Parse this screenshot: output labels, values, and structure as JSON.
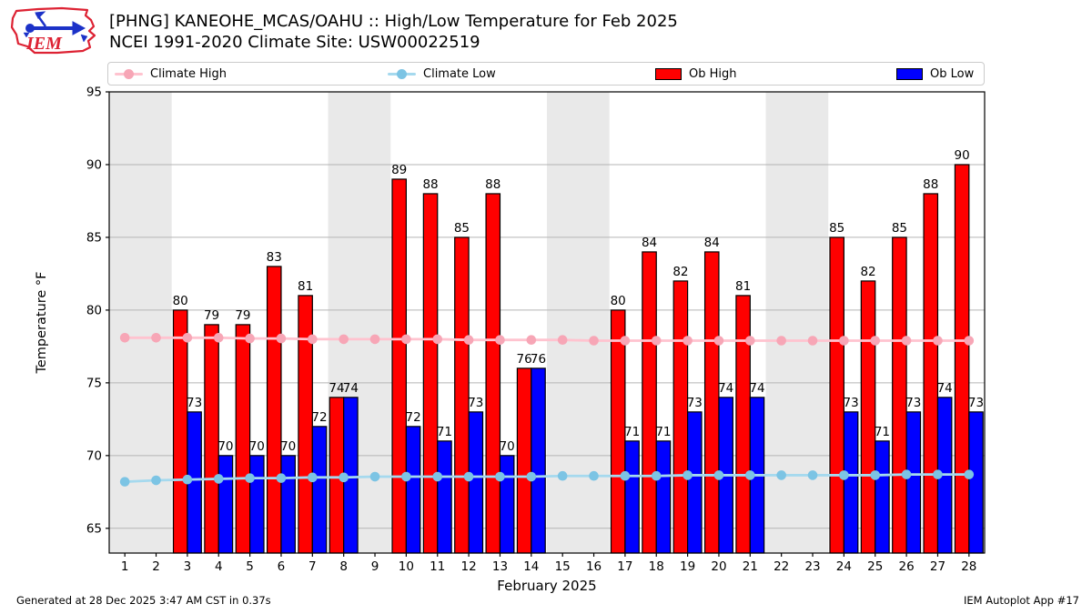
{
  "logo": {
    "text": "IEM"
  },
  "header": {
    "title_line1": "[PHNG] KANEOHE_MCAS/OAHU :: High/Low Temperature for Feb 2025",
    "title_line2": "NCEI 1991-2020 Climate Site: USW00022519"
  },
  "legend": {
    "items": [
      {
        "label": "Climate High",
        "type": "line",
        "line_color": "#ffc3cf",
        "marker_color": "#f7a6b6"
      },
      {
        "label": "Climate Low",
        "type": "line",
        "line_color": "#a5d9ee",
        "marker_color": "#7cc4e4"
      },
      {
        "label": "Ob High",
        "type": "patch",
        "color": "#ff0000"
      },
      {
        "label": "Ob Low",
        "type": "patch",
        "color": "#0000ff"
      }
    ]
  },
  "chart_data": {
    "type": "bar",
    "title": "[PHNG] KANEOHE_MCAS/OAHU :: High/Low Temperature for Feb 2025",
    "subtitle": "NCEI 1991-2020 Climate Site: USW00022519",
    "xlabel": "February 2025",
    "ylabel": "Temperature °F",
    "xlim": [
      0.5,
      28.5
    ],
    "ylim": [
      63.3,
      95
    ],
    "yticks": [
      65,
      70,
      75,
      80,
      85,
      90,
      95
    ],
    "grid": "horizontal",
    "legend_position": "top",
    "band_color": "#e9e9e9",
    "bands": [
      [
        0.5,
        2.5
      ],
      [
        7.5,
        9.5
      ],
      [
        14.5,
        16.5
      ],
      [
        21.5,
        23.5
      ]
    ],
    "x": [
      1,
      2,
      3,
      4,
      5,
      6,
      7,
      8,
      9,
      10,
      11,
      12,
      13,
      14,
      15,
      16,
      17,
      18,
      19,
      20,
      21,
      22,
      23,
      24,
      25,
      26,
      27,
      28
    ],
    "series": [
      {
        "name": "Climate High",
        "type": "line",
        "line_color": "#ffc3cf",
        "marker_color": "#f7a6b6",
        "values": [
          78.1,
          78.1,
          78.1,
          78.1,
          78.05,
          78.05,
          78.0,
          78.0,
          78.0,
          78.0,
          78.0,
          77.95,
          77.95,
          77.95,
          77.95,
          77.9,
          77.9,
          77.9,
          77.9,
          77.9,
          77.9,
          77.9,
          77.9,
          77.9,
          77.9,
          77.9,
          77.9,
          77.9
        ]
      },
      {
        "name": "Climate Low",
        "type": "line",
        "line_color": "#a5d9ee",
        "marker_color": "#7cc4e4",
        "values": [
          68.2,
          68.3,
          68.35,
          68.4,
          68.45,
          68.45,
          68.5,
          68.5,
          68.55,
          68.55,
          68.55,
          68.55,
          68.55,
          68.55,
          68.6,
          68.6,
          68.6,
          68.6,
          68.65,
          68.65,
          68.65,
          68.65,
          68.65,
          68.65,
          68.65,
          68.7,
          68.7,
          68.7
        ]
      },
      {
        "name": "Ob High",
        "type": "bar",
        "color": "#ff0000",
        "values": [
          null,
          null,
          80,
          79,
          79,
          83,
          81,
          74,
          null,
          89,
          88,
          85,
          88,
          76,
          null,
          null,
          80,
          84,
          82,
          84,
          81,
          null,
          null,
          85,
          82,
          85,
          88,
          90
        ]
      },
      {
        "name": "Ob Low",
        "type": "bar",
        "color": "#0000ff",
        "values": [
          null,
          null,
          73,
          70,
          70,
          70,
          72,
          74,
          null,
          72,
          71,
          73,
          70,
          76,
          null,
          null,
          71,
          71,
          73,
          74,
          74,
          null,
          null,
          73,
          71,
          73,
          74,
          73
        ]
      }
    ]
  },
  "footer": {
    "left": "Generated at 28 Dec 2025 3:47 AM CST in 0.37s",
    "right": "IEM Autoplot App #17"
  }
}
